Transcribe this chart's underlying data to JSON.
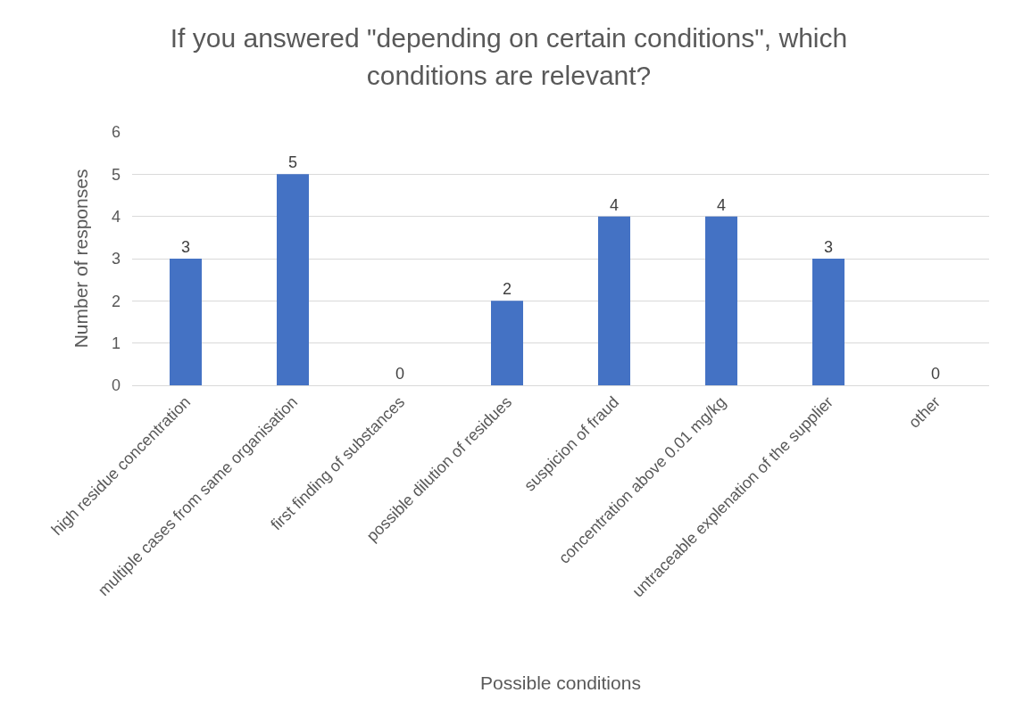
{
  "chart_data": {
    "type": "bar",
    "title": "If you answered \"depending on certain conditions\", which conditions are relevant?",
    "xlabel": "Possible conditions",
    "ylabel": "Number of responses",
    "categories": [
      "high residue concentration",
      "multiple cases from same organisation",
      "first finding of substances",
      "possible dilution of residues",
      "suspicion of fraud",
      "concentration above 0.01 mg/kg",
      "untraceable explenation of the supplier",
      "other"
    ],
    "values": [
      3,
      5,
      0,
      2,
      4,
      4,
      3,
      0
    ],
    "color": "#4472c4",
    "ylim": [
      0,
      6
    ],
    "yticks": [
      0,
      1,
      2,
      3,
      4,
      5,
      6
    ],
    "grid": "y",
    "data_labels": true,
    "legend": false
  }
}
